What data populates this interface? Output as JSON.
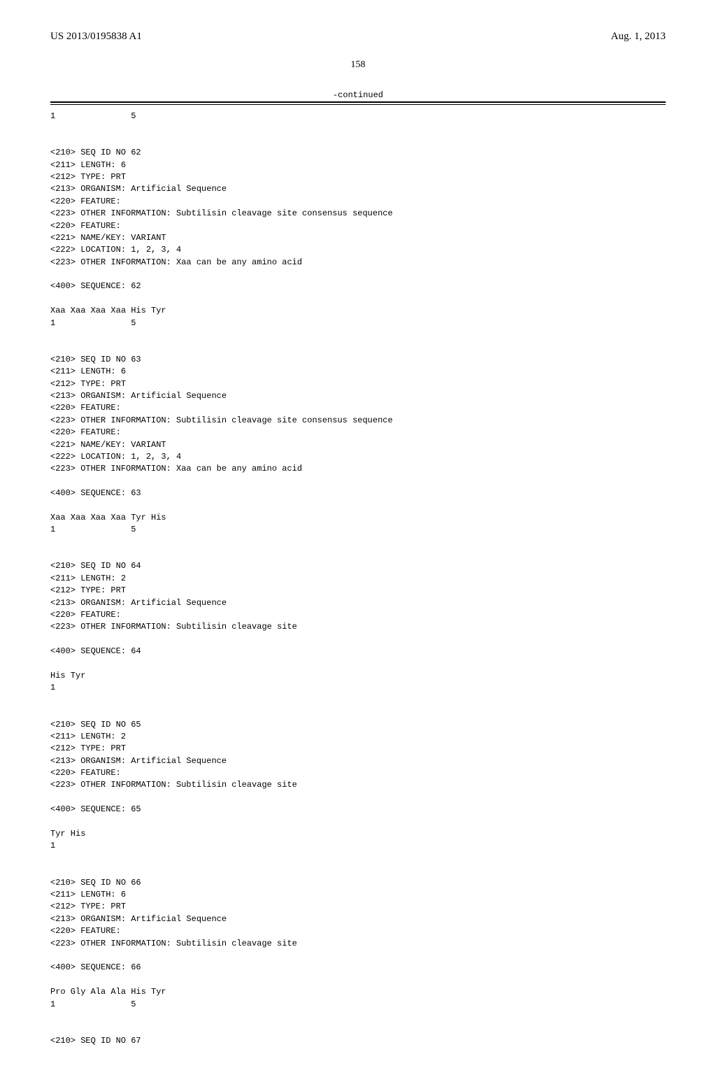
{
  "header": {
    "publication_number": "US 2013/0195838 A1",
    "publication_date": "Aug. 1, 2013"
  },
  "page_number": "158",
  "continued_label": "-continued",
  "sequence_text": "1               5\n\n\n<210> SEQ ID NO 62\n<211> LENGTH: 6\n<212> TYPE: PRT\n<213> ORGANISM: Artificial Sequence\n<220> FEATURE:\n<223> OTHER INFORMATION: Subtilisin cleavage site consensus sequence\n<220> FEATURE:\n<221> NAME/KEY: VARIANT\n<222> LOCATION: 1, 2, 3, 4\n<223> OTHER INFORMATION: Xaa can be any amino acid\n\n<400> SEQUENCE: 62\n\nXaa Xaa Xaa Xaa His Tyr\n1               5\n\n\n<210> SEQ ID NO 63\n<211> LENGTH: 6\n<212> TYPE: PRT\n<213> ORGANISM: Artificial Sequence\n<220> FEATURE:\n<223> OTHER INFORMATION: Subtilisin cleavage site consensus sequence\n<220> FEATURE:\n<221> NAME/KEY: VARIANT\n<222> LOCATION: 1, 2, 3, 4\n<223> OTHER INFORMATION: Xaa can be any amino acid\n\n<400> SEQUENCE: 63\n\nXaa Xaa Xaa Xaa Tyr His\n1               5\n\n\n<210> SEQ ID NO 64\n<211> LENGTH: 2\n<212> TYPE: PRT\n<213> ORGANISM: Artificial Sequence\n<220> FEATURE:\n<223> OTHER INFORMATION: Subtilisin cleavage site\n\n<400> SEQUENCE: 64\n\nHis Tyr\n1\n\n\n<210> SEQ ID NO 65\n<211> LENGTH: 2\n<212> TYPE: PRT\n<213> ORGANISM: Artificial Sequence\n<220> FEATURE:\n<223> OTHER INFORMATION: Subtilisin cleavage site\n\n<400> SEQUENCE: 65\n\nTyr His\n1\n\n\n<210> SEQ ID NO 66\n<211> LENGTH: 6\n<212> TYPE: PRT\n<213> ORGANISM: Artificial Sequence\n<220> FEATURE:\n<223> OTHER INFORMATION: Subtilisin cleavage site\n\n<400> SEQUENCE: 66\n\nPro Gly Ala Ala His Tyr\n1               5\n\n\n<210> SEQ ID NO 67"
}
